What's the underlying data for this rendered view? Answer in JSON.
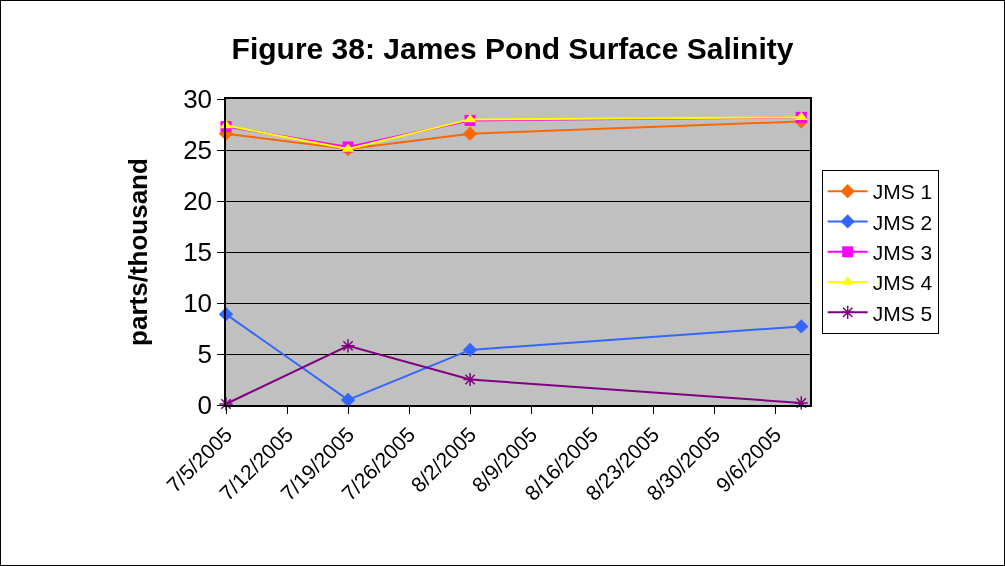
{
  "chart_data": {
    "type": "line",
    "title": "Figure 38: James Pond Surface Salinity",
    "ylabel": "parts/thousand",
    "x": [
      "2005-07-05",
      "2005-07-19",
      "2005-08-02",
      "2005-09-09"
    ],
    "series": [
      {
        "name": "JMS 1",
        "color": "#ff6600",
        "marker": "diamond",
        "values": [
          26.6,
          25.1,
          26.6,
          27.8
        ]
      },
      {
        "name": "JMS 2",
        "color": "#3366ff",
        "marker": "diamond",
        "values": [
          8.9,
          0.5,
          5.4,
          7.7
        ]
      },
      {
        "name": "JMS 3",
        "color": "#ff00ff",
        "marker": "square",
        "values": [
          27.3,
          25.3,
          27.9,
          28.2
        ]
      },
      {
        "name": "JMS 4",
        "color": "#ffff00",
        "marker": "triangle",
        "values": [
          27.4,
          25.1,
          28.0,
          28.2
        ]
      },
      {
        "name": "JMS 5",
        "color": "#800080",
        "marker": "cross",
        "values": [
          0.1,
          5.8,
          2.5,
          0.2
        ]
      }
    ],
    "xlim": [
      "2005-07-05",
      "2005-09-10"
    ],
    "xticks": [
      {
        "value": "2005-07-05",
        "label": "7/5/2005"
      },
      {
        "value": "2005-07-12",
        "label": "7/12/2005"
      },
      {
        "value": "2005-07-19",
        "label": "7/19/2005"
      },
      {
        "value": "2005-07-26",
        "label": "7/26/2005"
      },
      {
        "value": "2005-08-02",
        "label": "8/2/2005"
      },
      {
        "value": "2005-08-09",
        "label": "8/9/2005"
      },
      {
        "value": "2005-08-16",
        "label": "8/16/2005"
      },
      {
        "value": "2005-08-23",
        "label": "8/23/2005"
      },
      {
        "value": "2005-08-30",
        "label": "8/30/2005"
      },
      {
        "value": "2005-09-06",
        "label": "9/6/2005"
      }
    ],
    "ylim": [
      0,
      30
    ],
    "yticks": [
      0,
      5,
      10,
      15,
      20,
      25,
      30
    ],
    "grid": "y",
    "legend": "right",
    "line_style": "solid"
  }
}
